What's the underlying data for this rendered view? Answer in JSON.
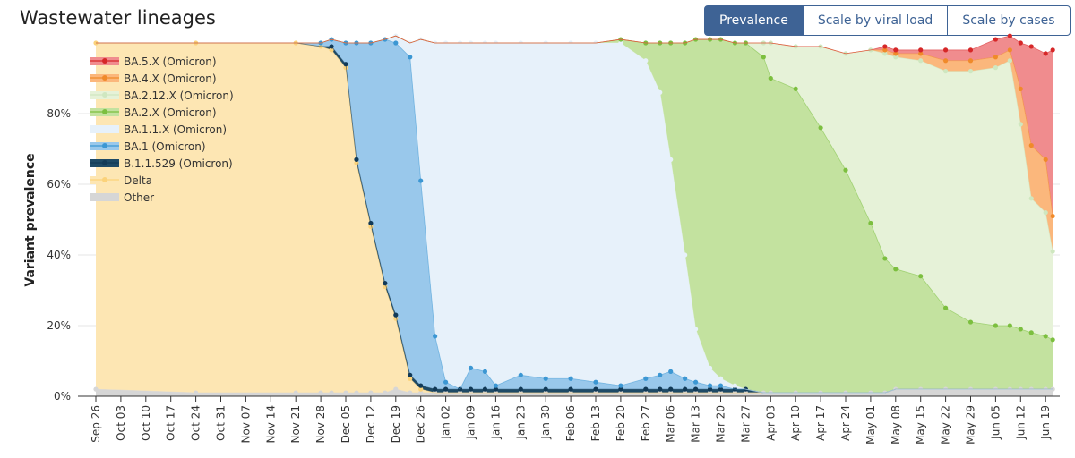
{
  "header": {
    "title": "Wastewater lineages"
  },
  "buttons": [
    {
      "label": "Prevalence",
      "active": true
    },
    {
      "label": "Scale by viral load",
      "active": false
    },
    {
      "label": "Scale by cases",
      "active": false
    }
  ],
  "chart_data": {
    "type": "area",
    "stacked": true,
    "title": "",
    "xlabel": "",
    "ylabel": "Variant prevalence",
    "ylim": [
      0,
      100
    ],
    "yticks": [
      "0%",
      "20%",
      "40%",
      "60%",
      "80%"
    ],
    "xticks": [
      "Sep 26",
      "Oct 03",
      "Oct 10",
      "Oct 17",
      "Oct 24",
      "Oct 31",
      "Nov 07",
      "Nov 14",
      "Nov 21",
      "Nov 28",
      "Dec 05",
      "Dec 12",
      "Dec 19",
      "Dec 26",
      "Jan 02",
      "Jan 09",
      "Jan 16",
      "Jan 23",
      "Jan 30",
      "Feb 06",
      "Feb 13",
      "Feb 20",
      "Feb 27",
      "Mar 06",
      "Mar 13",
      "Mar 20",
      "Mar 27",
      "Apr 03",
      "Apr 10",
      "Apr 17",
      "Apr 24",
      "May 01",
      "May 08",
      "May 15",
      "May 22",
      "May 29",
      "Jun 05",
      "Jun 12",
      "Jun 19"
    ],
    "x": [
      "Sep 26",
      "Oct 24",
      "Nov 21",
      "Nov 28",
      "Dec 01",
      "Dec 05",
      "Dec 08",
      "Dec 12",
      "Dec 16",
      "Dec 19",
      "Dec 23",
      "Dec 26",
      "Dec 30",
      "Jan 02",
      "Jan 06",
      "Jan 09",
      "Jan 13",
      "Jan 16",
      "Jan 23",
      "Jan 30",
      "Feb 06",
      "Feb 13",
      "Feb 20",
      "Feb 27",
      "Mar 03",
      "Mar 06",
      "Mar 10",
      "Mar 13",
      "Mar 17",
      "Mar 20",
      "Mar 24",
      "Mar 27",
      "Apr 01",
      "Apr 03",
      "Apr 10",
      "Apr 17",
      "Apr 24",
      "May 01",
      "May 05",
      "May 08",
      "May 15",
      "May 22",
      "May 29",
      "Jun 05",
      "Jun 09",
      "Jun 12",
      "Jun 15",
      "Jun 19",
      "Jun 21"
    ],
    "legend_position": "top-left",
    "series": [
      {
        "name": "Other",
        "color": "#d6d6d6",
        "values": [
          2,
          1,
          1,
          1,
          1,
          1,
          1,
          1,
          1,
          2,
          1,
          1,
          1,
          1,
          1,
          1,
          1,
          1,
          1,
          1,
          1,
          1,
          1,
          1,
          1,
          1,
          1,
          1,
          1,
          1,
          1,
          1,
          1,
          1,
          1,
          1,
          1,
          1,
          1,
          2,
          2,
          2,
          2,
          2,
          2,
          2,
          2,
          2,
          2
        ]
      },
      {
        "name": "Delta",
        "color": "#fde6b3",
        "values": [
          98,
          99,
          99,
          98,
          97,
          92,
          65,
          47,
          30,
          20,
          4,
          1,
          0,
          0,
          0,
          0,
          0,
          0,
          0,
          0,
          0,
          0,
          0,
          0,
          0,
          0,
          0,
          0,
          0,
          0,
          0,
          0,
          0,
          0,
          0,
          0,
          0,
          0,
          0,
          0,
          0,
          0,
          0,
          0,
          0,
          0,
          0,
          0,
          0
        ]
      },
      {
        "name": "B.1.1.529 (Omicron)",
        "color": "#1e4a66",
        "values": [
          0,
          0,
          0,
          0,
          1,
          1,
          1,
          1,
          1,
          1,
          1,
          1,
          1,
          1,
          1,
          1,
          1,
          1,
          1,
          1,
          1,
          1,
          1,
          1,
          1,
          1,
          1,
          1,
          1,
          1,
          1,
          1,
          0,
          0,
          0,
          0,
          0,
          0,
          0,
          0,
          0,
          0,
          0,
          0,
          0,
          0,
          0,
          0,
          0
        ]
      },
      {
        "name": "BA.1 (Omicron)",
        "color": "#99c8eb",
        "values": [
          0,
          0,
          0,
          1,
          2,
          6,
          33,
          51,
          69,
          77,
          90,
          58,
          15,
          2,
          0,
          6,
          5,
          1,
          4,
          3,
          3,
          2,
          1,
          3,
          4,
          5,
          3,
          2,
          1,
          1,
          0,
          0,
          0,
          0,
          0,
          0,
          0,
          0,
          0,
          0,
          0,
          0,
          0,
          0,
          0,
          0,
          0,
          0,
          0
        ]
      },
      {
        "name": "BA.1.1.X (Omicron)",
        "color": "#e7f1fa",
        "values": [
          0,
          0,
          0,
          0,
          0,
          0,
          0,
          0,
          0,
          2,
          4,
          40,
          83,
          96,
          98,
          92,
          93,
          97,
          94,
          95,
          95,
          96,
          97,
          90,
          80,
          60,
          35,
          15,
          5,
          2,
          1,
          0,
          0,
          0,
          0,
          0,
          0,
          0,
          0,
          0,
          0,
          0,
          0,
          0,
          0,
          0,
          0,
          0,
          0
        ]
      },
      {
        "name": "BA.2.X (Omicron)",
        "color": "#c3e29f",
        "values": [
          0,
          0,
          0,
          0,
          0,
          0,
          0,
          0,
          0,
          0,
          0,
          0,
          0,
          0,
          0,
          0,
          0,
          0,
          0,
          0,
          0,
          0,
          1,
          5,
          14,
          33,
          60,
          82,
          93,
          96,
          97,
          98,
          95,
          89,
          86,
          75,
          63,
          48,
          38,
          34,
          32,
          23,
          19,
          18,
          18,
          17,
          16,
          15,
          14
        ]
      },
      {
        "name": "BA.2.12.X (Omicron)",
        "color": "#e6f2d8",
        "values": [
          0,
          0,
          0,
          0,
          0,
          0,
          0,
          0,
          0,
          0,
          0,
          0,
          0,
          0,
          0,
          0,
          0,
          0,
          0,
          0,
          0,
          0,
          0,
          0,
          0,
          0,
          0,
          0,
          0,
          0,
          0,
          0,
          4,
          10,
          12,
          23,
          33,
          49,
          58,
          60,
          61,
          67,
          71,
          73,
          75,
          58,
          38,
          35,
          25
        ]
      },
      {
        "name": "BA.4.X (Omicron)",
        "color": "#fbb77c",
        "values": [
          0,
          0,
          0,
          0,
          0,
          0,
          0,
          0,
          0,
          0,
          0,
          0,
          0,
          0,
          0,
          0,
          0,
          0,
          0,
          0,
          0,
          0,
          0,
          0,
          0,
          0,
          0,
          0,
          0,
          0,
          0,
          0,
          0,
          0,
          0,
          0,
          0,
          0,
          1,
          1,
          2,
          3,
          3,
          3,
          3,
          10,
          15,
          15,
          10
        ]
      },
      {
        "name": "BA.5.X (Omicron)",
        "color": "#f08c8e",
        "values": [
          0,
          0,
          0,
          0,
          0,
          0,
          0,
          0,
          0,
          0,
          0,
          0,
          0,
          0,
          0,
          0,
          0,
          0,
          0,
          0,
          0,
          0,
          0,
          0,
          0,
          0,
          0,
          0,
          0,
          0,
          0,
          0,
          0,
          0,
          0,
          0,
          0,
          0,
          1,
          1,
          1,
          3,
          3,
          5,
          4,
          13,
          28,
          30,
          47
        ]
      }
    ]
  }
}
